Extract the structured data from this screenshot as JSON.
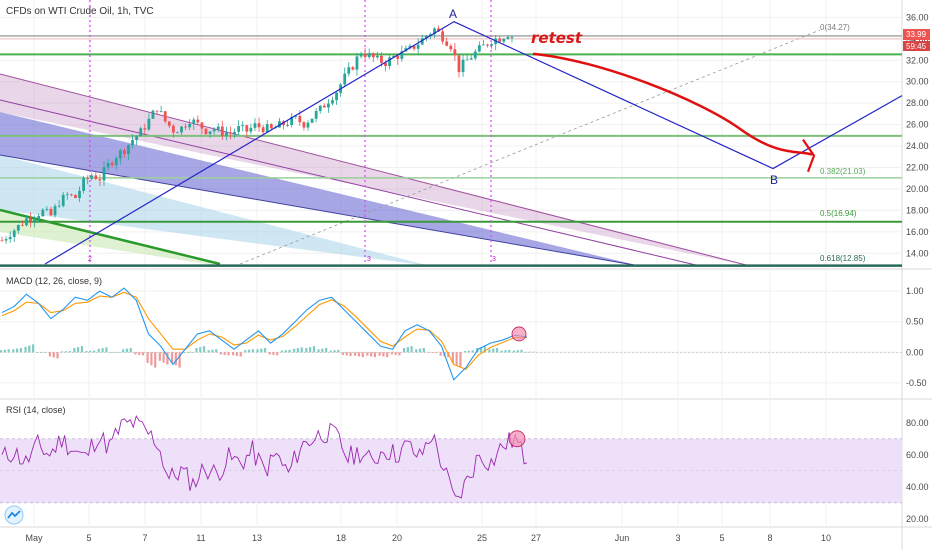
{
  "header": {
    "title": "CFDs on WTI Crude Oil, 1h, TVC"
  },
  "price_tags": {
    "last": "33.99",
    "countdown": "59:45"
  },
  "annotations": {
    "retest": "retest",
    "wave_a": "A",
    "wave_b": "B",
    "cycle_marks": [
      "2",
      "3",
      "3"
    ]
  },
  "fib_labels": {
    "level_0": "0(34.27)",
    "level_382": "0.382(21.03)",
    "level_5": "0.5(16.94)",
    "level_618": "0.618(12.85)"
  },
  "indicators": {
    "macd_title": "MACD (12, 26, close, 9)",
    "rsi_title": "RSI (14, close)"
  },
  "colors": {
    "up": "#26a69a",
    "down": "#ef5350",
    "fib_green": "#4caf50",
    "wave_line": "#2424c8",
    "arrow": "#e01010",
    "cycle_line": "#e040fb",
    "macd_line": "#2196f3",
    "signal_line": "#ff9800",
    "rsi_line": "#9c27b0",
    "rsi_band": "#ede0f8"
  },
  "chart_data": [
    {
      "type": "candlestick",
      "title": "CFDs on WTI Crude Oil, 1h, TVC",
      "x_ticks": [
        "May",
        "5",
        "7",
        "11",
        "13",
        "18",
        "20",
        "25",
        "27",
        "Jun",
        "3",
        "5",
        "8",
        "10"
      ],
      "y_ticks": [
        "14.00",
        "16.00",
        "18.00",
        "20.00",
        "22.00",
        "24.00",
        "26.00",
        "28.00",
        "30.00",
        "32.00",
        "34.00",
        "36.00"
      ],
      "ylim": [
        13.0,
        36.5
      ],
      "last_price": 33.99,
      "close_path": [
        [
          0,
          15.2
        ],
        [
          2,
          15.9
        ],
        [
          4,
          16.5
        ],
        [
          6,
          17.2
        ],
        [
          8,
          17.6
        ],
        [
          10,
          17.9
        ],
        [
          12,
          17.5
        ],
        [
          14,
          18.8
        ],
        [
          16,
          19.4
        ],
        [
          18,
          19.2
        ],
        [
          20,
          20.6
        ],
        [
          22,
          21.3
        ],
        [
          24,
          21.0
        ],
        [
          26,
          22.2
        ],
        [
          28,
          23.1
        ],
        [
          30,
          23.7
        ],
        [
          32,
          24.6
        ],
        [
          34,
          25.3
        ],
        [
          36,
          26.4
        ],
        [
          38,
          27.6
        ],
        [
          40,
          26.3
        ],
        [
          42,
          25.5
        ],
        [
          44,
          25.7
        ],
        [
          46,
          26.5
        ],
        [
          48,
          26.0
        ],
        [
          50,
          25.5
        ],
        [
          52,
          25.6
        ],
        [
          54,
          25.3
        ],
        [
          56,
          25.2
        ],
        [
          58,
          25.6
        ],
        [
          60,
          25.4
        ],
        [
          62,
          25.9
        ],
        [
          64,
          25.7
        ],
        [
          66,
          25.5
        ],
        [
          68,
          25.9
        ],
        [
          70,
          26.2
        ],
        [
          72,
          26.5
        ],
        [
          74,
          26.1
        ],
        [
          76,
          26.7
        ],
        [
          78,
          27.4
        ],
        [
          80,
          28.3
        ],
        [
          82,
          29.1
        ],
        [
          84,
          30.4
        ],
        [
          86,
          31.5
        ],
        [
          88,
          32.8
        ],
        [
          90,
          32.4
        ],
        [
          92,
          32.0
        ],
        [
          94,
          31.8
        ],
        [
          96,
          32.3
        ],
        [
          98,
          32.6
        ],
        [
          100,
          33.0
        ],
        [
          102,
          33.6
        ],
        [
          104,
          34.3
        ],
        [
          106,
          34.9
        ],
        [
          108,
          34.2
        ],
        [
          110,
          33.4
        ],
        [
          112,
          31.2
        ],
        [
          114,
          32.0
        ],
        [
          116,
          32.7
        ],
        [
          118,
          33.3
        ],
        [
          120,
          33.9
        ],
        [
          122,
          34.1
        ],
        [
          124,
          34.5
        ],
        [
          126,
          33.99
        ]
      ],
      "series": [
        {
          "name": "A→B wave",
          "values": [
            {
              "x": "2020-05-04",
              "y": 13.0
            },
            {
              "x": "2020-05-22",
              "y": 35.6
            },
            {
              "x": "2020-06-08",
              "y": 21.9
            },
            {
              "x": "2020-06-11",
              "y": 28.7
            }
          ]
        },
        {
          "name": "Fibonacci",
          "values": [
            {
              "ratio": 0,
              "price": 34.27
            },
            {
              "ratio": 0.382,
              "price": 21.03
            },
            {
              "ratio": 0.5,
              "price": 16.94
            },
            {
              "ratio": 0.618,
              "price": 12.85
            }
          ]
        }
      ]
    },
    {
      "type": "line",
      "title": "MACD (12, 26, close, 9)",
      "y_ticks": [
        "-0.50",
        "0.00",
        "0.50",
        "1.00"
      ],
      "ylim": [
        -0.65,
        1.15
      ],
      "series": [
        {
          "name": "MACD",
          "values": [
            0.65,
            0.75,
            0.95,
            0.8,
            0.55,
            0.7,
            0.9,
            0.85,
            1.0,
            0.9,
            1.05,
            0.85,
            0.3,
            0.1,
            -0.2,
            0.05,
            0.3,
            0.35,
            0.2,
            0.05,
            0.2,
            0.35,
            0.15,
            0.3,
            0.5,
            0.7,
            0.85,
            0.9,
            0.7,
            0.5,
            0.3,
            0.1,
            0.05,
            0.35,
            0.45,
            0.35,
            0.1,
            -0.45,
            -0.25,
            0.05,
            0.15,
            0.2,
            0.28,
            0.25
          ]
        },
        {
          "name": "Signal",
          "values": [
            0.6,
            0.68,
            0.82,
            0.8,
            0.65,
            0.68,
            0.8,
            0.82,
            0.92,
            0.9,
            0.98,
            0.9,
            0.55,
            0.3,
            0.05,
            0.05,
            0.2,
            0.3,
            0.25,
            0.12,
            0.15,
            0.28,
            0.2,
            0.26,
            0.42,
            0.6,
            0.78,
            0.86,
            0.76,
            0.58,
            0.38,
            0.18,
            0.1,
            0.25,
            0.38,
            0.36,
            0.18,
            -0.2,
            -0.28,
            -0.05,
            0.08,
            0.16,
            0.24,
            0.24
          ]
        }
      ]
    },
    {
      "type": "line",
      "title": "RSI (14, close)",
      "y_ticks": [
        "20.00",
        "40.00",
        "60.00",
        "80.00"
      ],
      "ylim": [
        18,
        88
      ],
      "bands": [
        30,
        70
      ],
      "series": [
        {
          "name": "RSI",
          "values": [
            58,
            62,
            55,
            66,
            60,
            70,
            63,
            58,
            72,
            65,
            78,
            80,
            75,
            68,
            45,
            50,
            42,
            52,
            48,
            58,
            55,
            62,
            50,
            60,
            48,
            65,
            70,
            74,
            72,
            58,
            62,
            55,
            64,
            60,
            66,
            58,
            73,
            52,
            30,
            44,
            60,
            55,
            66,
            70,
            55
          ]
        }
      ]
    }
  ]
}
